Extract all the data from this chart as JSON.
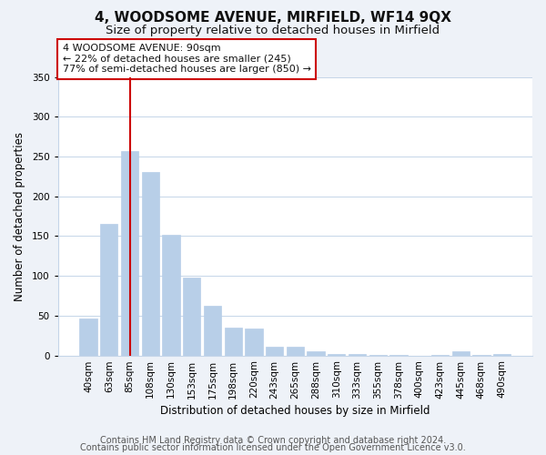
{
  "title": "4, WOODSOME AVENUE, MIRFIELD, WF14 9QX",
  "subtitle": "Size of property relative to detached houses in Mirfield",
  "xlabel": "Distribution of detached houses by size in Mirfield",
  "ylabel": "Number of detached properties",
  "bar_labels": [
    "40sqm",
    "63sqm",
    "85sqm",
    "108sqm",
    "130sqm",
    "153sqm",
    "175sqm",
    "198sqm",
    "220sqm",
    "243sqm",
    "265sqm",
    "288sqm",
    "310sqm",
    "333sqm",
    "355sqm",
    "378sqm",
    "400sqm",
    "423sqm",
    "445sqm",
    "468sqm",
    "490sqm"
  ],
  "bar_values": [
    46,
    165,
    257,
    231,
    152,
    98,
    62,
    35,
    34,
    11,
    11,
    5,
    2,
    2,
    1,
    1,
    0,
    1,
    5,
    1,
    2
  ],
  "bar_color": "#b8cfe8",
  "bar_edge_color": "#b8cfe8",
  "vline_x": 2,
  "vline_color": "#cc0000",
  "ylim": [
    0,
    350
  ],
  "yticks": [
    0,
    50,
    100,
    150,
    200,
    250,
    300,
    350
  ],
  "annotation_line1": "4 WOODSOME AVENUE: 90sqm",
  "annotation_line2": "← 22% of detached houses are smaller (245)",
  "annotation_line3": "77% of semi-detached houses are larger (850) →",
  "footer_line1": "Contains HM Land Registry data © Crown copyright and database right 2024.",
  "footer_line2": "Contains public sector information licensed under the Open Government Licence v3.0.",
  "background_color": "#eef2f8",
  "plot_bg_color": "#ffffff",
  "grid_color": "#c5d5e8",
  "title_fontsize": 11,
  "subtitle_fontsize": 9.5,
  "axis_label_fontsize": 8.5,
  "tick_fontsize": 7.5,
  "annotation_fontsize": 8,
  "footer_fontsize": 7
}
